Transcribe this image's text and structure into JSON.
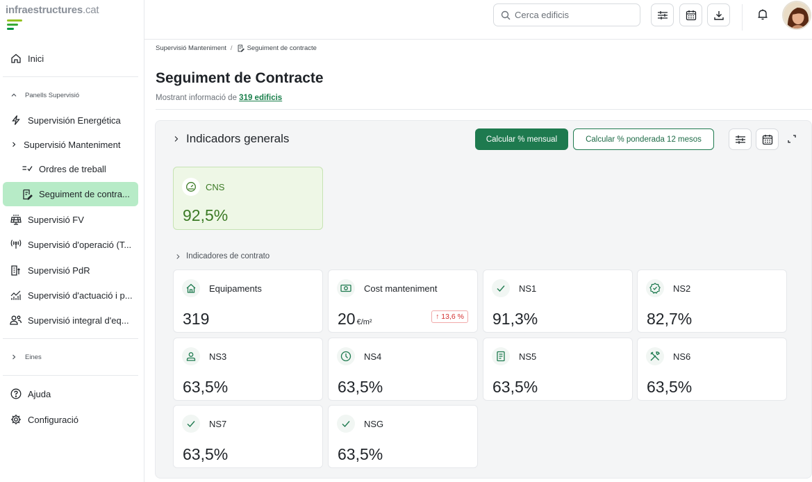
{
  "brand": {
    "name": "infraestructures",
    "tld": ".cat",
    "bar_colors": [
      "#94c11f",
      "#3aaa35",
      "#009640"
    ]
  },
  "sidebar": {
    "home": "Inici",
    "section_panels": "Panells Supervisió",
    "items": [
      {
        "label": "Supervisión Energética",
        "icon": "bolt-icon"
      },
      {
        "label": "Supervisió Manteniment",
        "icon": "chevron-right-icon"
      },
      {
        "label": "Ordres de treball",
        "icon": "list-check-icon"
      },
      {
        "label": "Seguiment de contra...",
        "icon": "contract-icon",
        "active": true
      },
      {
        "label": "Supervisió FV",
        "icon": "solar-panel-icon"
      },
      {
        "label": "Supervisió d'operació (T...",
        "icon": "antenna-icon"
      },
      {
        "label": "Supervisió PdR",
        "icon": "building-icon"
      },
      {
        "label": "Supervisió d'actuació i p...",
        "icon": "chart-line-icon"
      },
      {
        "label": "Supervisió integral d'eq...",
        "icon": "users-icon"
      }
    ],
    "section_tools": "Eines",
    "help": "Ajuda",
    "settings": "Configuració"
  },
  "header": {
    "search_placeholder": "Cerca edificis"
  },
  "breadcrumb": {
    "parent": "Supervisió Manteniment",
    "current": "Seguiment de contracte"
  },
  "page": {
    "title": "Seguiment de Contracte",
    "subtitle_prefix": "Mostrant informació de ",
    "subtitle_link": "319 edificis"
  },
  "panel": {
    "title": "Indicadors generals",
    "btn_monthly": "Calcular % mensual",
    "btn_weighted": "Calcular % ponderada 12 mesos",
    "cns": {
      "label": "CNS",
      "value": "92,5%"
    },
    "section_label": "Indicadores de contrato",
    "cards": [
      {
        "label": "Equipaments",
        "value": "319",
        "icon": "home-icon"
      },
      {
        "label": "Cost manteniment",
        "value": "20",
        "unit": "€/m²",
        "badge": "↑ 13,6 %",
        "icon": "money-icon"
      },
      {
        "label": "NS1",
        "value": "91,3%",
        "icon": "check-icon"
      },
      {
        "label": "NS2",
        "value": "82,7%",
        "icon": "badge-check-icon"
      },
      {
        "label": "NS3",
        "value": "63,5%",
        "icon": "user-icon"
      },
      {
        "label": "NS4",
        "value": "63,5%",
        "icon": "clock-icon"
      },
      {
        "label": "NS5",
        "value": "63,5%",
        "icon": "document-icon"
      },
      {
        "label": "NS6",
        "value": "63,5%",
        "icon": "tools-icon"
      },
      {
        "label": "NS7",
        "value": "63,5%",
        "icon": "check-icon"
      },
      {
        "label": "NSG",
        "value": "63,5%",
        "icon": "check-icon"
      }
    ]
  },
  "colors": {
    "accent": "#1e7a4f",
    "active_nav": "#b7ebc7",
    "cns_bg": "#eef7e6",
    "cns_text": "#3b7a25",
    "badge_red": "#d32f2f"
  }
}
